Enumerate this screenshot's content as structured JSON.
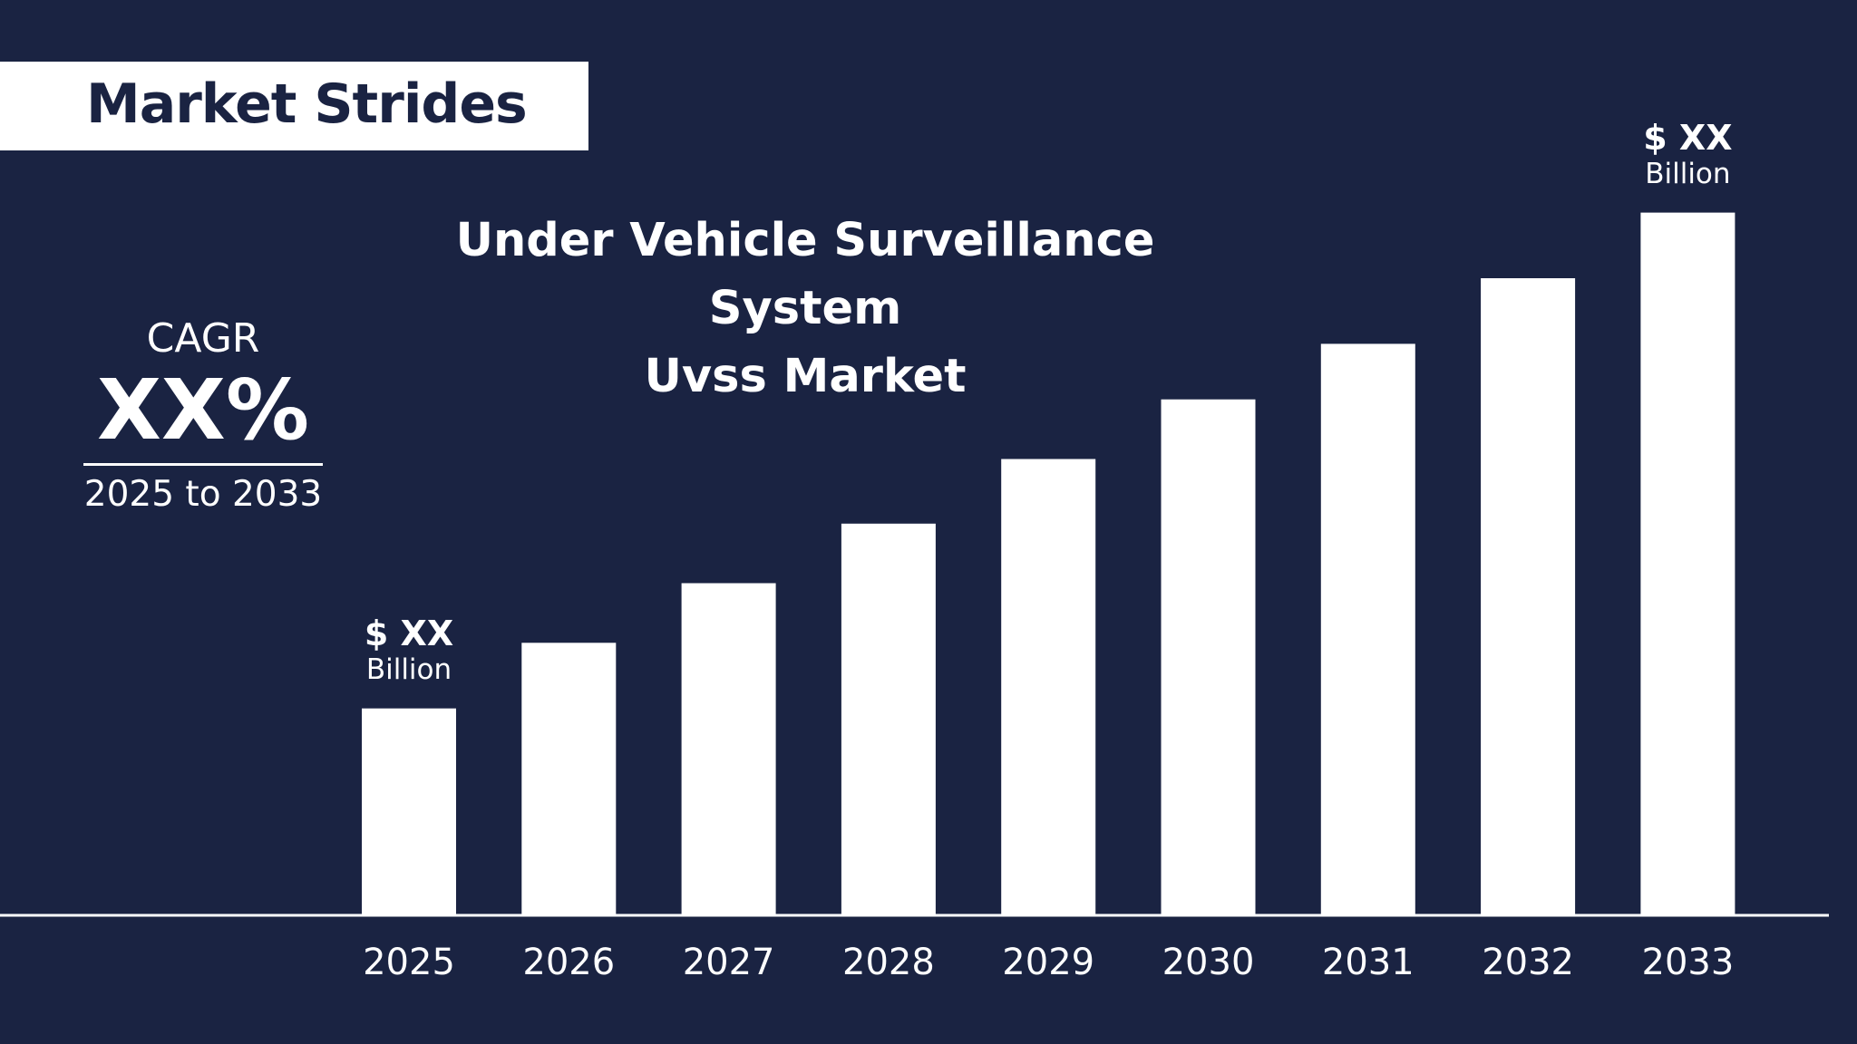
{
  "brand": {
    "name": "Market Strides"
  },
  "cagr": {
    "label": "CAGR",
    "value": "XX%",
    "range": "2025 to 2033"
  },
  "colors": {
    "background": "#1a2342",
    "bars": "#ffffff",
    "text": "#ffffff",
    "logo_text": "#1a2342"
  },
  "chart_data": {
    "type": "bar",
    "title_lines": [
      "Under Vehicle Surveillance System",
      "Uvss Market"
    ],
    "categories": [
      "2025",
      "2026",
      "2027",
      "2028",
      "2029",
      "2030",
      "2031",
      "2032",
      "2033"
    ],
    "values": [
      2.04,
      2.69,
      3.28,
      3.87,
      4.51,
      5.1,
      5.65,
      6.3,
      6.95
    ],
    "xlabel": "",
    "ylabel": "",
    "ylim": [
      0,
      7
    ],
    "grid": false,
    "legend": "none",
    "annotations": [
      {
        "category": "2025",
        "value_label": "$ XX",
        "unit_label": "Billion"
      },
      {
        "category": "2033",
        "value_label": "$ XX",
        "unit_label": "Billion"
      }
    ]
  }
}
